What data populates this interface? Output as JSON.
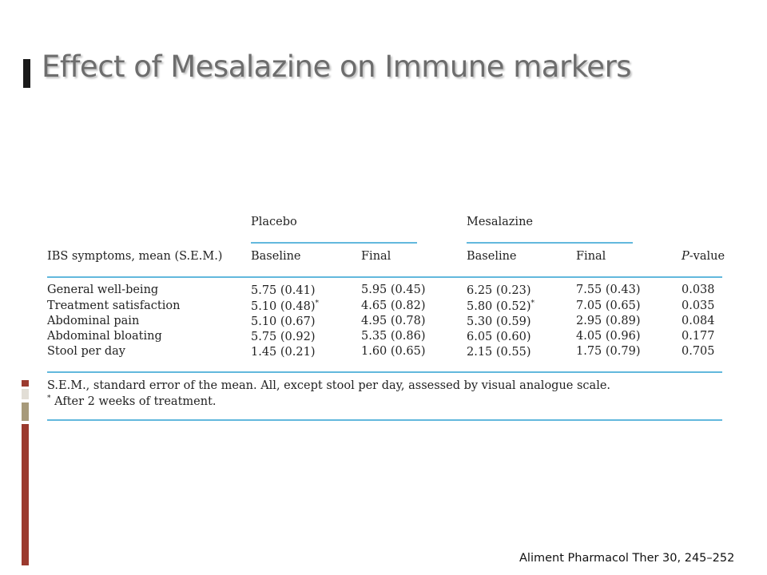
{
  "slide": {
    "title": "Effect of Mesalazine on Immune markers",
    "citation": "Aliment Pharmacol Ther 30, 245–252"
  },
  "table": {
    "group_headers": [
      "Placebo",
      "Mesalazine"
    ],
    "row_label_header": "IBS symptoms, mean (S.E.M.)",
    "col_headers": [
      "Baseline",
      "Final",
      "Baseline",
      "Final"
    ],
    "pvalue_header_italic": "P",
    "pvalue_header_rest": "-value",
    "rows": [
      {
        "label": "General well-being",
        "pb": "5.75 (0.41)",
        "pb_mark": "",
        "pf": "5.95 (0.45)",
        "mb": "6.25 (0.23)",
        "mb_mark": "",
        "mf": "7.55 (0.43)",
        "p": "0.038"
      },
      {
        "label": "Treatment satisfaction",
        "pb": "5.10 (0.48)",
        "pb_mark": "*",
        "pf": "4.65 (0.82)",
        "mb": "5.80 (0.52)",
        "mb_mark": "*",
        "mf": "7.05 (0.65)",
        "p": "0.035"
      },
      {
        "label": "Abdominal pain",
        "pb": "5.10 (0.67)",
        "pb_mark": "",
        "pf": "4.95 (0.78)",
        "mb": "5.30 (0.59)",
        "mb_mark": "",
        "mf": "2.95 (0.89)",
        "p": "0.084"
      },
      {
        "label": "Abdominal bloating",
        "pb": "5.75 (0.92)",
        "pb_mark": "",
        "pf": "5.35 (0.86)",
        "mb": "6.05 (0.60)",
        "mb_mark": "",
        "mf": "4.05 (0.96)",
        "p": "0.177"
      },
      {
        "label": "Stool per day",
        "pb": "1.45 (0.21)",
        "pb_mark": "",
        "pf": "1.60 (0.65)",
        "mb": "2.15 (0.55)",
        "mb_mark": "",
        "mf": "1.75 (0.79)",
        "p": "0.705"
      }
    ],
    "footnote_1": "S.E.M., standard error of the mean. All, except stool per day, assessed by visual analogue scale.",
    "footnote_2_mark": "*",
    "footnote_2": " After 2 weeks of treatment."
  },
  "colors": {
    "rule": "#62b8dd",
    "title": "#6d6d6d",
    "accent_red": "#9b3a2e",
    "accent_tan": "#a79a7a"
  }
}
